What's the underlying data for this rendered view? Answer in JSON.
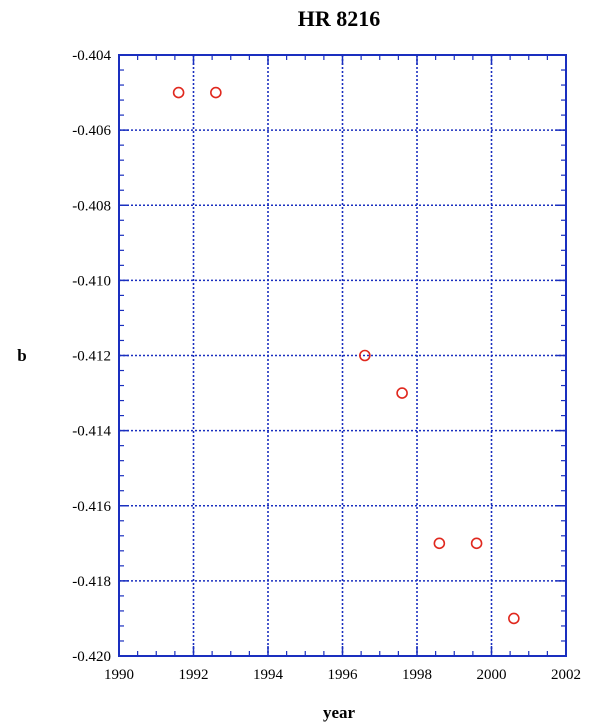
{
  "chart_data": {
    "type": "scatter",
    "title": "HR 8216",
    "xlabel": "year",
    "ylabel": "b",
    "xlim": [
      1990,
      2002
    ],
    "ylim": [
      -0.42,
      -0.404
    ],
    "x_ticks": [
      "1990",
      "1992",
      "1994",
      "1996",
      "1998",
      "2000",
      "2002"
    ],
    "y_ticks": [
      "-0.420",
      "-0.418",
      "-0.416",
      "-0.414",
      "-0.412",
      "-0.410",
      "-0.408",
      "-0.406",
      "-0.404"
    ],
    "grid": true,
    "colors": {
      "axis": "#1a2fbf",
      "grid": "#1a2fbf",
      "marker": "#e0281e"
    },
    "series": [
      {
        "marker": "open-circle",
        "x": [
          1991.6,
          1992.6,
          1996.6,
          1997.6,
          1998.6,
          1999.6,
          2000.6
        ],
        "y": [
          -0.405,
          -0.405,
          -0.412,
          -0.413,
          -0.417,
          -0.417,
          -0.419
        ]
      }
    ]
  }
}
